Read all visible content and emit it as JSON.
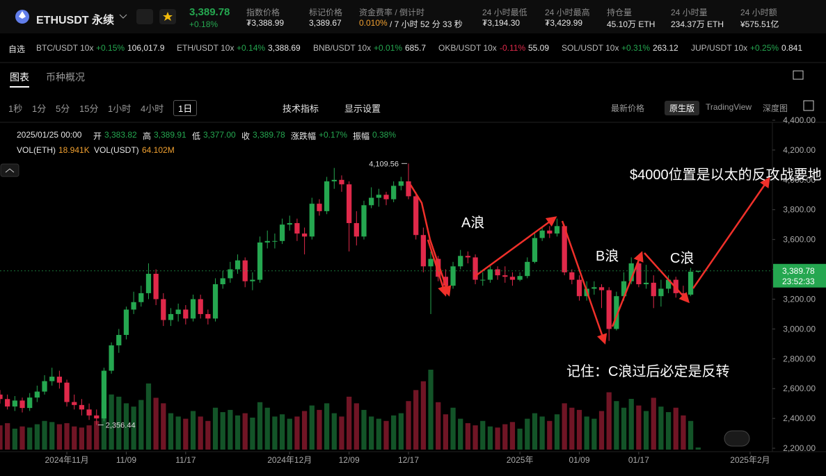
{
  "header": {
    "symbol": "ETHUSDT 永续",
    "last": "3,389.78",
    "change": "+0.18%",
    "stats": [
      {
        "label": "指数价格",
        "value": "₮3,388.99"
      },
      {
        "label": "标记价格",
        "value": "3,389.67"
      },
      {
        "label": "资金费率 / 倒计时",
        "value": "0.010%",
        "note": "/ 7 小时 52 分 33 秒"
      },
      {
        "label": "24 小时最低",
        "value": "₮3,194.30"
      },
      {
        "label": "24 小时最高",
        "value": "₮3,429.99"
      },
      {
        "label": "持仓量",
        "value": "45.10万 ETH"
      },
      {
        "label": "24 小时量",
        "value": "234.37万 ETH"
      },
      {
        "label": "24 小时额",
        "value": "¥575.51亿"
      }
    ]
  },
  "tickers": {
    "label": "自选",
    "items": [
      {
        "pair": "BTC/USDT 10x",
        "change": "+0.15%",
        "price": "106,017.9"
      },
      {
        "pair": "ETH/USDT 10x",
        "change": "+0.14%",
        "price": "3,388.69"
      },
      {
        "pair": "BNB/USDT 10x",
        "change": "+0.01%",
        "price": "685.7"
      },
      {
        "pair": "OKB/USDT 10x",
        "change": "-0.11%",
        "price": "55.09"
      },
      {
        "pair": "SOL/USDT 10x",
        "change": "+0.31%",
        "price": "263.12"
      },
      {
        "pair": "JUP/USDT 10x",
        "change": "+0.25%",
        "price": "0.841"
      }
    ]
  },
  "tabs": [
    "图表",
    "币种概况"
  ],
  "toolbar": {
    "intervals": [
      "1秒",
      "1分",
      "5分",
      "15分",
      "1小时",
      "4小时",
      "1日"
    ],
    "selected_interval": "1日",
    "tools": [
      "技术指标",
      "显示设置"
    ],
    "price_mode": "最新价格",
    "views": [
      "原生版",
      "TradingView",
      "深度图"
    ],
    "selected_view": "原生版"
  },
  "legend": {
    "date": "2025/01/25 00:00",
    "items": [
      {
        "label": "开",
        "value": "3,383.82"
      },
      {
        "label": "高",
        "value": "3,389.91"
      },
      {
        "label": "低",
        "value": "3,377.00"
      },
      {
        "label": "收",
        "value": "3,389.78"
      },
      {
        "label": "涨跌幅",
        "value": "+0.17%"
      },
      {
        "label": "振幅",
        "value": "0.38%"
      }
    ],
    "volume": [
      {
        "label": "VOL(ETH)",
        "value": "18.941K"
      },
      {
        "label": "VOL(USDT)",
        "value": "64.102M"
      }
    ]
  },
  "annotations": [
    "A浪",
    "B浪",
    "C浪",
    "$4000位置是以太的反攻战要地",
    "记住：C浪过后必定是反转"
  ],
  "chart_data": {
    "type": "candlestick",
    "up_color": "#25a750",
    "down_color": "#e0294a",
    "xlim": [
      "2024/10/23",
      "2025/02/04"
    ],
    "ylim": [
      2177,
      4386
    ],
    "yticks": [
      {
        "value": 2200,
        "label": "2,200.00"
      },
      {
        "value": 2400,
        "label": "2,400.00"
      },
      {
        "value": 2600,
        "label": "2,600.00"
      },
      {
        "value": 2800,
        "label": "2,800.00"
      },
      {
        "value": 3000,
        "label": "3,000.00"
      },
      {
        "value": 3200,
        "label": "3,200.00"
      },
      {
        "value": 3400,
        "label": "3,400.00"
      },
      {
        "value": 3600,
        "label": "3,600.00"
      },
      {
        "value": 3800,
        "label": "3,800.00"
      },
      {
        "value": 4000,
        "label": "4,000.00"
      },
      {
        "value": 4200,
        "label": "4,200.00"
      },
      {
        "value": 4400,
        "label": "4,400.00"
      }
    ],
    "xticks": [
      {
        "value": "2024/11/01",
        "label": "2024年11月"
      },
      {
        "value": "2024/11/09",
        "label": "11/09"
      },
      {
        "value": "2024/11/17",
        "label": "11/17"
      },
      {
        "value": "2024/12/01",
        "label": "2024年12月"
      },
      {
        "value": "2024/12/09",
        "label": "12/09"
      },
      {
        "value": "2024/12/17",
        "label": "12/17"
      },
      {
        "value": "2025/01/01",
        "label": "2025年"
      },
      {
        "value": "2025/01/09",
        "label": "01/09"
      },
      {
        "value": "2025/01/17",
        "label": "01/17"
      },
      {
        "value": "2025/02/01",
        "label": "2025年2月"
      }
    ],
    "last_price": {
      "value": 3389.78,
      "label": "3,389.78"
    },
    "countdown": "23:52:33",
    "high_label": "4,109.56",
    "low_label": "2,356.44",
    "dates": [
      "2024/10/23",
      "2024/10/24",
      "2024/10/25",
      "2024/10/26",
      "2024/10/27",
      "2024/10/28",
      "2024/10/29",
      "2024/10/30",
      "2024/10/31",
      "2024/11/01",
      "2024/11/02",
      "2024/11/03",
      "2024/11/04",
      "2024/11/05",
      "2024/11/06",
      "2024/11/07",
      "2024/11/08",
      "2024/11/09",
      "2024/11/10",
      "2024/11/11",
      "2024/11/12",
      "2024/11/13",
      "2024/11/14",
      "2024/11/15",
      "2024/11/16",
      "2024/11/17",
      "2024/11/18",
      "2024/11/19",
      "2024/11/20",
      "2024/11/21",
      "2024/11/22",
      "2024/11/23",
      "2024/11/24",
      "2024/11/25",
      "2024/11/26",
      "2024/11/27",
      "2024/11/28",
      "2024/11/29",
      "2024/11/30",
      "2024/12/01",
      "2024/12/02",
      "2024/12/03",
      "2024/12/04",
      "2024/12/05",
      "2024/12/06",
      "2024/12/07",
      "2024/12/08",
      "2024/12/09",
      "2024/12/10",
      "2024/12/11",
      "2024/12/12",
      "2024/12/13",
      "2024/12/14",
      "2024/12/15",
      "2024/12/16",
      "2024/12/17",
      "2024/12/18",
      "2024/12/19",
      "2024/12/20",
      "2024/12/21",
      "2024/12/22",
      "2024/12/23",
      "2024/12/24",
      "2024/12/25",
      "2024/12/26",
      "2024/12/27",
      "2024/12/28",
      "2024/12/29",
      "2024/12/30",
      "2024/12/31",
      "2025/01/01",
      "2025/01/02",
      "2025/01/03",
      "2025/01/04",
      "2025/01/05",
      "2025/01/06",
      "2025/01/07",
      "2025/01/08",
      "2025/01/09",
      "2025/01/10",
      "2025/01/11",
      "2025/01/12",
      "2025/01/13",
      "2025/01/14",
      "2025/01/15",
      "2025/01/16",
      "2025/01/17",
      "2025/01/18",
      "2025/01/19",
      "2025/01/20",
      "2025/01/21",
      "2025/01/22",
      "2025/01/23",
      "2025/01/24",
      "2025/01/25"
    ],
    "ohlc": [
      [
        2560,
        2590,
        2500,
        2530
      ],
      [
        2530,
        2560,
        2460,
        2480
      ],
      [
        2480,
        2550,
        2450,
        2520
      ],
      [
        2520,
        2540,
        2440,
        2470
      ],
      [
        2470,
        2570,
        2450,
        2540
      ],
      [
        2540,
        2620,
        2510,
        2580
      ],
      [
        2580,
        2690,
        2560,
        2650
      ],
      [
        2650,
        2740,
        2620,
        2680
      ],
      [
        2680,
        2720,
        2600,
        2640
      ],
      [
        2640,
        2660,
        2480,
        2510
      ],
      [
        2510,
        2560,
        2460,
        2490
      ],
      [
        2490,
        2530,
        2420,
        2460
      ],
      [
        2460,
        2500,
        2390,
        2420
      ],
      [
        2420,
        2460,
        2356.44,
        2400
      ],
      [
        2400,
        2740,
        2380,
        2720
      ],
      [
        2720,
        2910,
        2700,
        2890
      ],
      [
        2890,
        3000,
        2840,
        2960
      ],
      [
        2960,
        3150,
        2930,
        3130
      ],
      [
        3130,
        3250,
        3100,
        3180
      ],
      [
        3180,
        3290,
        3150,
        3240
      ],
      [
        3240,
        3440,
        3200,
        3370
      ],
      [
        3370,
        3400,
        3160,
        3200
      ],
      [
        3200,
        3240,
        3020,
        3060
      ],
      [
        3060,
        3140,
        3020,
        3100
      ],
      [
        3100,
        3170,
        3050,
        3130
      ],
      [
        3130,
        3160,
        3030,
        3070
      ],
      [
        3070,
        3230,
        3050,
        3200
      ],
      [
        3200,
        3230,
        3070,
        3100
      ],
      [
        3100,
        3130,
        3030,
        3070
      ],
      [
        3070,
        3340,
        3050,
        3300
      ],
      [
        3300,
        3390,
        3270,
        3340
      ],
      [
        3340,
        3450,
        3310,
        3400
      ],
      [
        3400,
        3500,
        3370,
        3460
      ],
      [
        3460,
        3480,
        3280,
        3320
      ],
      [
        3320,
        3380,
        3260,
        3330
      ],
      [
        3330,
        3620,
        3310,
        3580
      ],
      [
        3580,
        3660,
        3540,
        3590
      ],
      [
        3590,
        3640,
        3540,
        3590
      ],
      [
        3590,
        3740,
        3570,
        3700
      ],
      [
        3700,
        3760,
        3660,
        3710
      ],
      [
        3710,
        3740,
        3590,
        3640
      ],
      [
        3640,
        3680,
        3500,
        3620
      ],
      [
        3620,
        3880,
        3600,
        3840
      ],
      [
        3840,
        3870,
        3760,
        3790
      ],
      [
        3790,
        4020,
        3770,
        3990
      ],
      [
        3990,
        4080,
        3940,
        4000
      ],
      [
        4000,
        4030,
        3920,
        3970
      ],
      [
        3970,
        3990,
        3520,
        3710
      ],
      [
        3710,
        3790,
        3560,
        3620
      ],
      [
        3620,
        3860,
        3600,
        3830
      ],
      [
        3830,
        3950,
        3810,
        3880
      ],
      [
        3880,
        3940,
        3820,
        3900
      ],
      [
        3900,
        3920,
        3830,
        3870
      ],
      [
        3870,
        3990,
        3850,
        3960
      ],
      [
        3960,
        4020,
        3930,
        3990
      ],
      [
        3990,
        4109.56,
        3870,
        3890
      ],
      [
        3890,
        3920,
        3600,
        3630
      ],
      [
        3630,
        3680,
        3380,
        3420
      ],
      [
        3420,
        3520,
        3100,
        3470
      ],
      [
        3470,
        3490,
        3320,
        3350
      ],
      [
        3350,
        3400,
        3250,
        3290
      ],
      [
        3290,
        3450,
        3270,
        3420
      ],
      [
        3420,
        3530,
        3400,
        3490
      ],
      [
        3490,
        3520,
        3440,
        3480
      ],
      [
        3480,
        3500,
        3300,
        3330
      ],
      [
        3330,
        3380,
        3290,
        3330
      ],
      [
        3330,
        3430,
        3310,
        3400
      ],
      [
        3400,
        3420,
        3330,
        3360
      ],
      [
        3360,
        3420,
        3310,
        3350
      ],
      [
        3350,
        3380,
        3290,
        3330
      ],
      [
        3330,
        3380,
        3320,
        3355
      ],
      [
        3355,
        3480,
        3340,
        3450
      ],
      [
        3450,
        3640,
        3440,
        3610
      ],
      [
        3610,
        3680,
        3590,
        3660
      ],
      [
        3660,
        3690,
        3610,
        3640
      ],
      [
        3640,
        3740,
        3620,
        3690
      ],
      [
        3690,
        3700,
        3360,
        3380
      ],
      [
        3380,
        3400,
        3300,
        3330
      ],
      [
        3330,
        3360,
        3190,
        3220
      ],
      [
        3220,
        3320,
        3190,
        3270
      ],
      [
        3270,
        3320,
        3230,
        3280
      ],
      [
        3280,
        3300,
        3140,
        3260
      ],
      [
        3260,
        3280,
        2920,
        3000
      ],
      [
        3000,
        3250,
        2990,
        3220
      ],
      [
        3220,
        3380,
        3190,
        3320
      ],
      [
        3320,
        3480,
        3300,
        3440
      ],
      [
        3440,
        3460,
        3280,
        3300
      ],
      [
        3300,
        3430,
        3270,
        3310
      ],
      [
        3310,
        3360,
        3140,
        3220
      ],
      [
        3220,
        3330,
        3150,
        3270
      ],
      [
        3270,
        3360,
        3240,
        3330
      ],
      [
        3330,
        3350,
        3210,
        3240
      ],
      [
        3240,
        3290,
        3200,
        3230
      ],
      [
        3230,
        3410,
        3220,
        3383.82
      ],
      [
        3383.82,
        3389.91,
        3377,
        3389.78
      ]
    ],
    "volume": [
      220,
      240,
      190,
      210,
      200,
      230,
      260,
      250,
      230,
      240,
      210,
      200,
      220,
      260,
      430,
      500,
      480,
      420,
      390,
      450,
      600,
      470,
      420,
      330,
      300,
      280,
      350,
      300,
      260,
      380,
      340,
      360,
      310,
      330,
      290,
      430,
      380,
      300,
      320,
      280,
      300,
      350,
      400,
      360,
      420,
      330,
      300,
      480,
      420,
      360,
      300,
      280,
      260,
      310,
      330,
      440,
      540,
      620,
      725,
      430,
      320,
      380,
      280,
      240,
      220,
      260,
      210,
      200,
      230,
      250,
      190,
      280,
      330,
      300,
      260,
      320,
      420,
      380,
      360,
      300,
      280,
      350,
      520,
      440,
      380,
      460,
      400,
      350,
      470,
      390,
      340,
      380,
      310,
      260,
      18.941
    ]
  }
}
